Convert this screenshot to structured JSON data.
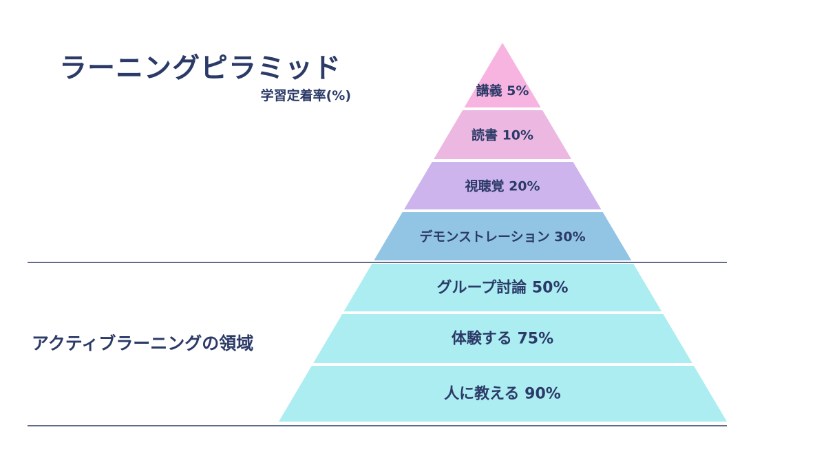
{
  "title": "ラーニングピラミッド",
  "subtitle": "学習定着率(%)",
  "active_learning_label": "アクティブラーニングの領域",
  "colors": {
    "text": "#2b3a67",
    "divider": "#2b3a67",
    "passive_top": "#f8b4e0",
    "passive_reading": "#ecb8e2",
    "passive_av": "#cdb4ec",
    "passive_demo": "#92c5e4",
    "active": "#abedf0"
  },
  "levels": [
    {
      "label": "講義 5%",
      "method": "講義",
      "rate": 5,
      "color": "#f8b4e0",
      "active": false
    },
    {
      "label": "読書 10%",
      "method": "読書",
      "rate": 10,
      "color": "#ecb8e2",
      "active": false
    },
    {
      "label": "視聴覚 20%",
      "method": "視聴覚",
      "rate": 20,
      "color": "#cdb4ec",
      "active": false
    },
    {
      "label": "デモンストレーション 30%",
      "method": "デモンストレーション",
      "rate": 30,
      "color": "#92c5e4",
      "active": false
    },
    {
      "label": "グループ討論 50%",
      "method": "グループ討論",
      "rate": 50,
      "color": "#abedf0",
      "active": true
    },
    {
      "label": "体験する 75%",
      "method": "体験する",
      "rate": 75,
      "color": "#abedf0",
      "active": true
    },
    {
      "label": "人に教える 90%",
      "method": "人に教える",
      "rate": 90,
      "color": "#abedf0",
      "active": true
    }
  ]
}
